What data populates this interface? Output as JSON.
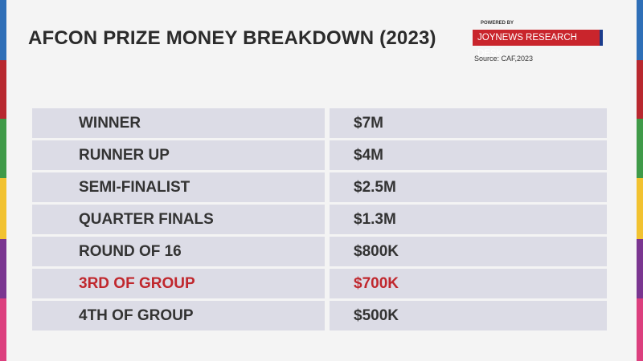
{
  "header": {
    "title": "AFCON PRIZE MONEY BREAKDOWN (2023)"
  },
  "branding": {
    "powered_by": "POWERED BY",
    "name": "JOYNEWS RESEARCH DESK",
    "source": "Source: CAF,2023"
  },
  "table": {
    "rows": [
      [
        "WINNER",
        "$7M"
      ],
      [
        "RUNNER UP",
        "$4M"
      ],
      [
        "SEMI-FINALIST",
        "$2.5M"
      ],
      [
        "QUARTER FINALS",
        "$1.3M"
      ],
      [
        "ROUND OF 16",
        "$800K"
      ],
      [
        "3RD OF GROUP",
        "$700K"
      ],
      [
        "4TH OF GROUP",
        "$500K"
      ]
    ],
    "highlight_row": 5,
    "highlight_color": "#c0272d"
  }
}
